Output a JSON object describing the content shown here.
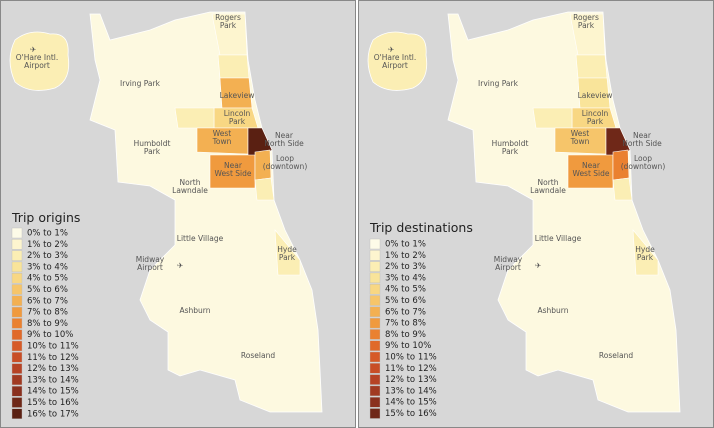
{
  "panels": [
    {
      "title": "Trip origins",
      "legend": [
        "0% to 1%",
        "1% to 2%",
        "2% to 3%",
        "3% to 4%",
        "4% to 5%",
        "5% to 6%",
        "6% to 7%",
        "7% to 8%",
        "8% to 9%",
        "9% to 10%",
        "10% to 11%",
        "11% to 12%",
        "12% to 13%",
        "13% to 14%",
        "14% to 15%",
        "15% to 16%",
        "16% to 17%"
      ],
      "colors": [
        "#fdfbe8",
        "#fdf5cf",
        "#fbeeb4",
        "#f9e49a",
        "#f8d783",
        "#f6c56a",
        "#f3b052",
        "#f09a3e",
        "#ea8130",
        "#e06a2a",
        "#d65a27",
        "#c84e26",
        "#b64325",
        "#a13a22",
        "#8a301e",
        "#6f2818",
        "#5a2012"
      ],
      "places": [
        [
          "Rogers",
          "Park"
        ],
        [
          "O'Hare Intl.",
          "Airport"
        ],
        [
          "Irving Park"
        ],
        [
          "Lakeview"
        ],
        [
          "Lincoln",
          "Park"
        ],
        [
          "Humboldt",
          "Park"
        ],
        [
          "West",
          "Town"
        ],
        [
          "Near",
          "North Side"
        ],
        [
          "Near",
          "West Side"
        ],
        [
          "Loop",
          "(downtown)"
        ],
        [
          "North",
          "Lawndale"
        ],
        [
          "Little Village"
        ],
        [
          "Midway",
          "Airport"
        ],
        [
          "Hyde",
          "Park"
        ],
        [
          "Ashburn"
        ],
        [
          "Roseland"
        ]
      ]
    },
    {
      "title": "Trip destinations",
      "legend": [
        "0% to 1%",
        "1% to 2%",
        "2% to 3%",
        "3% to 4%",
        "4% to 5%",
        "5% to 6%",
        "6% to 7%",
        "7% to 8%",
        "8% to 9%",
        "9% to 10%",
        "10% to 11%",
        "11% to 12%",
        "12% to 13%",
        "13% to 14%",
        "14% to 15%",
        "15% to 16%"
      ],
      "colors": [
        "#fdfbe8",
        "#fdf5cf",
        "#fbeeb4",
        "#f9e49a",
        "#f8d783",
        "#f6c56a",
        "#f3b052",
        "#f09a3e",
        "#ea8130",
        "#e06a2a",
        "#d65a27",
        "#c84e26",
        "#b64325",
        "#a13a22",
        "#8a301e",
        "#6f2818"
      ],
      "places": [
        [
          "Rogers",
          "Park"
        ],
        [
          "O'Hare Intl.",
          "Airport"
        ],
        [
          "Irving Park"
        ],
        [
          "Lakeview"
        ],
        [
          "Lincoln",
          "Park"
        ],
        [
          "Humboldt",
          "Park"
        ],
        [
          "West",
          "Town"
        ],
        [
          "Near",
          "North Side"
        ],
        [
          "Near",
          "West Side"
        ],
        [
          "Loop",
          "(downtown)"
        ],
        [
          "North",
          "Lawndale"
        ],
        [
          "Little Village"
        ],
        [
          "Midway",
          "Airport"
        ],
        [
          "Hyde",
          "Park"
        ],
        [
          "Ashburn"
        ],
        [
          "Roseland"
        ]
      ]
    }
  ]
}
